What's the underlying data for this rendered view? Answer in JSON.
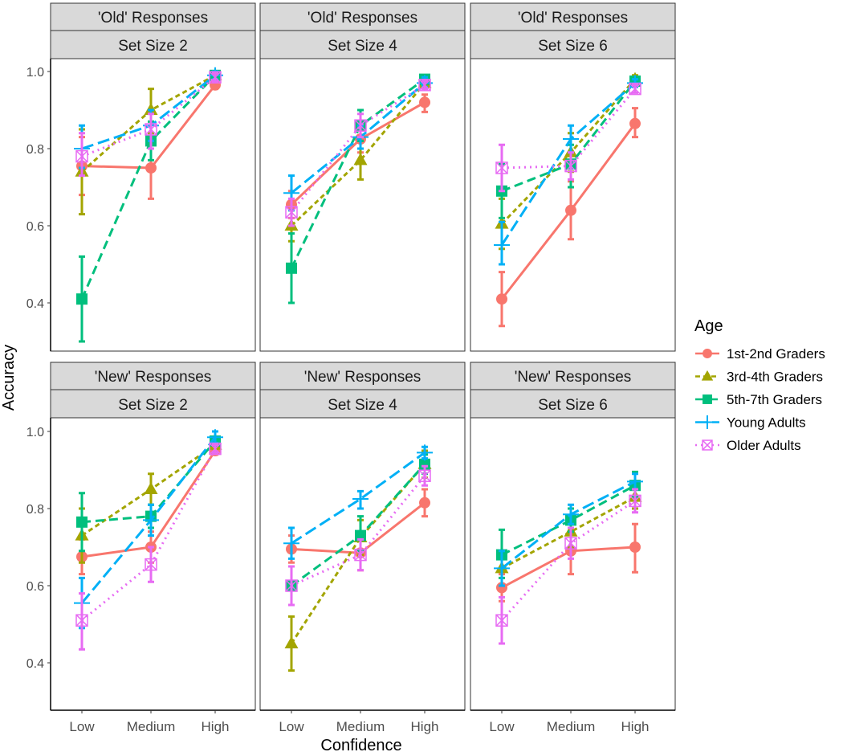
{
  "chart_data": {
    "type": "line",
    "xlabel": "Confidence",
    "ylabel": "Accuracy",
    "categories": [
      "Low",
      "Medium",
      "High"
    ],
    "ylim": [
      0.275,
      1.033
    ],
    "yticks": [
      0.4,
      0.6,
      0.8,
      1.0
    ],
    "ytick_labels": [
      "0.4",
      "0.6",
      "0.8",
      "1.0"
    ],
    "grid": false,
    "legend": {
      "title": "Age",
      "placement": "right",
      "entries": [
        "1st-2nd Graders",
        "3rd-4th Graders",
        "5th-7th Graders",
        "Young Adults",
        "Older Adults"
      ]
    },
    "series_styles": [
      {
        "name": "1st-2nd Graders",
        "color": "#F8766D",
        "shape": "circle",
        "linetype": "solid"
      },
      {
        "name": "3rd-4th Graders",
        "color": "#A3A500",
        "shape": "triangle",
        "linetype": "dashed-short"
      },
      {
        "name": "5th-7th Graders",
        "color": "#00BF7D",
        "shape": "square",
        "linetype": "dashed"
      },
      {
        "name": "Young Adults",
        "color": "#00B0F6",
        "shape": "plus",
        "linetype": "longdash"
      },
      {
        "name": "Older Adults",
        "color": "#E76BF3",
        "shape": "square-cross",
        "linetype": "dotted"
      }
    ],
    "panels": [
      {
        "row_label": "'Old' Responses",
        "col_label": "Set Size 2",
        "series": [
          {
            "name": "1st-2nd Graders",
            "values": [
              0.755,
              0.75,
              0.965
            ],
            "lower": [
              0.68,
              0.67,
              0.955
            ],
            "upper": [
              0.83,
              0.83,
              0.975
            ]
          },
          {
            "name": "3rd-4th Graders",
            "values": [
              0.74,
              0.9,
              0.99
            ],
            "lower": [
              0.63,
              0.84,
              0.98
            ],
            "upper": [
              0.85,
              0.955,
              1.0
            ]
          },
          {
            "name": "5th-7th Graders",
            "values": [
              0.41,
              0.82,
              0.99
            ],
            "lower": [
              0.3,
              0.77,
              0.98
            ],
            "upper": [
              0.52,
              0.87,
              1.0
            ]
          },
          {
            "name": "Young Adults",
            "values": [
              0.8,
              0.86,
              0.99
            ],
            "lower": [
              0.75,
              0.82,
              0.98
            ],
            "upper": [
              0.86,
              0.9,
              1.0
            ]
          },
          {
            "name": "Older Adults",
            "values": [
              0.78,
              0.85,
              0.985
            ],
            "lower": [
              0.73,
              0.8,
              0.975
            ],
            "upper": [
              0.84,
              0.89,
              0.995
            ]
          }
        ]
      },
      {
        "row_label": "'Old' Responses",
        "col_label": "Set Size 4",
        "series": [
          {
            "name": "1st-2nd Graders",
            "values": [
              0.655,
              0.825,
              0.92
            ],
            "lower": [
              0.62,
              0.79,
              0.895
            ],
            "upper": [
              0.69,
              0.86,
              0.94
            ]
          },
          {
            "name": "3rd-4th Graders",
            "values": [
              0.6,
              0.77,
              0.97
            ],
            "lower": [
              0.56,
              0.72,
              0.96
            ],
            "upper": [
              0.64,
              0.82,
              0.98
            ]
          },
          {
            "name": "5th-7th Graders",
            "values": [
              0.49,
              0.86,
              0.98
            ],
            "lower": [
              0.4,
              0.82,
              0.97
            ],
            "upper": [
              0.58,
              0.9,
              0.99
            ]
          },
          {
            "name": "Young Adults",
            "values": [
              0.685,
              0.83,
              0.97
            ],
            "lower": [
              0.64,
              0.8,
              0.96
            ],
            "upper": [
              0.73,
              0.86,
              0.985
            ]
          },
          {
            "name": "Older Adults",
            "values": [
              0.635,
              0.86,
              0.965
            ],
            "lower": [
              0.6,
              0.83,
              0.955
            ],
            "upper": [
              0.67,
              0.89,
              0.975
            ]
          }
        ]
      },
      {
        "row_label": "'Old' Responses",
        "col_label": "Set Size 6",
        "series": [
          {
            "name": "1st-2nd Graders",
            "values": [
              0.41,
              0.64,
              0.865
            ],
            "lower": [
              0.34,
              0.565,
              0.83
            ],
            "upper": [
              0.48,
              0.715,
              0.905
            ]
          },
          {
            "name": "3rd-4th Graders",
            "values": [
              0.605,
              0.79,
              0.98
            ],
            "lower": [
              0.54,
              0.74,
              0.97
            ],
            "upper": [
              0.67,
              0.84,
              0.99
            ]
          },
          {
            "name": "5th-7th Graders",
            "values": [
              0.69,
              0.76,
              0.975
            ],
            "lower": [
              0.62,
              0.7,
              0.965
            ],
            "upper": [
              0.76,
              0.81,
              0.985
            ]
          },
          {
            "name": "Young Adults",
            "values": [
              0.55,
              0.825,
              0.97
            ],
            "lower": [
              0.5,
              0.79,
              0.96
            ],
            "upper": [
              0.61,
              0.86,
              0.98
            ]
          },
          {
            "name": "Older Adults",
            "values": [
              0.75,
              0.755,
              0.955
            ],
            "lower": [
              0.69,
              0.72,
              0.945
            ],
            "upper": [
              0.81,
              0.79,
              0.965
            ]
          }
        ]
      },
      {
        "row_label": "'New' Responses",
        "col_label": "Set Size 2",
        "series": [
          {
            "name": "1st-2nd Graders",
            "values": [
              0.675,
              0.7,
              0.95
            ],
            "lower": [
              0.63,
              0.66,
              0.94
            ],
            "upper": [
              0.72,
              0.74,
              0.96
            ]
          },
          {
            "name": "3rd-4th Graders",
            "values": [
              0.73,
              0.85,
              0.965
            ],
            "lower": [
              0.66,
              0.81,
              0.955
            ],
            "upper": [
              0.8,
              0.89,
              0.975
            ]
          },
          {
            "name": "5th-7th Graders",
            "values": [
              0.765,
              0.78,
              0.975
            ],
            "lower": [
              0.69,
              0.75,
              0.965
            ],
            "upper": [
              0.84,
              0.81,
              0.985
            ]
          },
          {
            "name": "Young Adults",
            "values": [
              0.555,
              0.77,
              0.985
            ],
            "lower": [
              0.49,
              0.73,
              0.97
            ],
            "upper": [
              0.62,
              0.81,
              1.0
            ]
          },
          {
            "name": "Older Adults",
            "values": [
              0.51,
              0.655,
              0.955
            ],
            "lower": [
              0.435,
              0.61,
              0.945
            ],
            "upper": [
              0.58,
              0.7,
              0.965
            ]
          }
        ]
      },
      {
        "row_label": "'New' Responses",
        "col_label": "Set Size 4",
        "series": [
          {
            "name": "1st-2nd Graders",
            "values": [
              0.695,
              0.685,
              0.815
            ],
            "lower": [
              0.66,
              0.64,
              0.78
            ],
            "upper": [
              0.73,
              0.73,
              0.85
            ]
          },
          {
            "name": "3rd-4th Graders",
            "values": [
              0.45,
              0.725,
              0.915
            ],
            "lower": [
              0.38,
              0.68,
              0.88
            ],
            "upper": [
              0.52,
              0.77,
              0.95
            ]
          },
          {
            "name": "5th-7th Graders",
            "values": [
              0.6,
              0.73,
              0.915
            ],
            "lower": [
              0.55,
              0.69,
              0.89
            ],
            "upper": [
              0.65,
              0.78,
              0.94
            ]
          },
          {
            "name": "Young Adults",
            "values": [
              0.71,
              0.825,
              0.945
            ],
            "lower": [
              0.67,
              0.8,
              0.93
            ],
            "upper": [
              0.75,
              0.845,
              0.96
            ]
          },
          {
            "name": "Older Adults",
            "values": [
              0.6,
              0.68,
              0.885
            ],
            "lower": [
              0.55,
              0.64,
              0.86
            ],
            "upper": [
              0.65,
              0.72,
              0.91
            ]
          }
        ]
      },
      {
        "row_label": "'New' Responses",
        "col_label": "Set Size 6",
        "series": [
          {
            "name": "1st-2nd Graders",
            "values": [
              0.595,
              0.69,
              0.7
            ],
            "lower": [
              0.56,
              0.63,
              0.635
            ],
            "upper": [
              0.63,
              0.76,
              0.76
            ]
          },
          {
            "name": "3rd-4th Graders",
            "values": [
              0.645,
              0.74,
              0.83
            ],
            "lower": [
              0.6,
              0.7,
              0.8
            ],
            "upper": [
              0.69,
              0.78,
              0.86
            ]
          },
          {
            "name": "5th-7th Graders",
            "values": [
              0.68,
              0.77,
              0.86
            ],
            "lower": [
              0.62,
              0.74,
              0.83
            ],
            "upper": [
              0.745,
              0.8,
              0.895
            ]
          },
          {
            "name": "Young Adults",
            "values": [
              0.645,
              0.785,
              0.87
            ],
            "lower": [
              0.6,
              0.76,
              0.85
            ],
            "upper": [
              0.69,
              0.81,
              0.89
            ]
          },
          {
            "name": "Older Adults",
            "values": [
              0.51,
              0.71,
              0.82
            ],
            "lower": [
              0.45,
              0.67,
              0.79
            ],
            "upper": [
              0.57,
              0.75,
              0.85
            ]
          }
        ]
      }
    ]
  }
}
